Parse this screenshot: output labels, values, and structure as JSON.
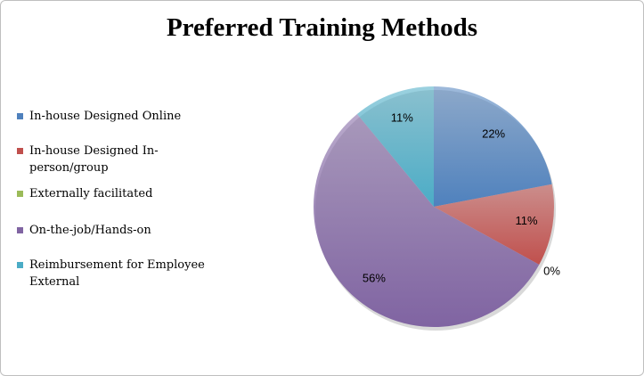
{
  "chart_data": {
    "type": "pie",
    "title": "Preferred Training Methods",
    "categories": [
      "In-house Designed Online",
      "In-house Designed In-person/group",
      "Externally facilitated",
      "On-the-job/Hands-on",
      "Reimbursement for Employee External"
    ],
    "values": [
      22,
      11,
      0,
      56,
      11
    ],
    "value_labels": [
      "22%",
      "11%",
      "0%",
      "56%",
      "11%"
    ],
    "colors": [
      "#4f81bd",
      "#c0504d",
      "#9bbb59",
      "#8064a2",
      "#4bacc6"
    ],
    "legend": "left"
  }
}
